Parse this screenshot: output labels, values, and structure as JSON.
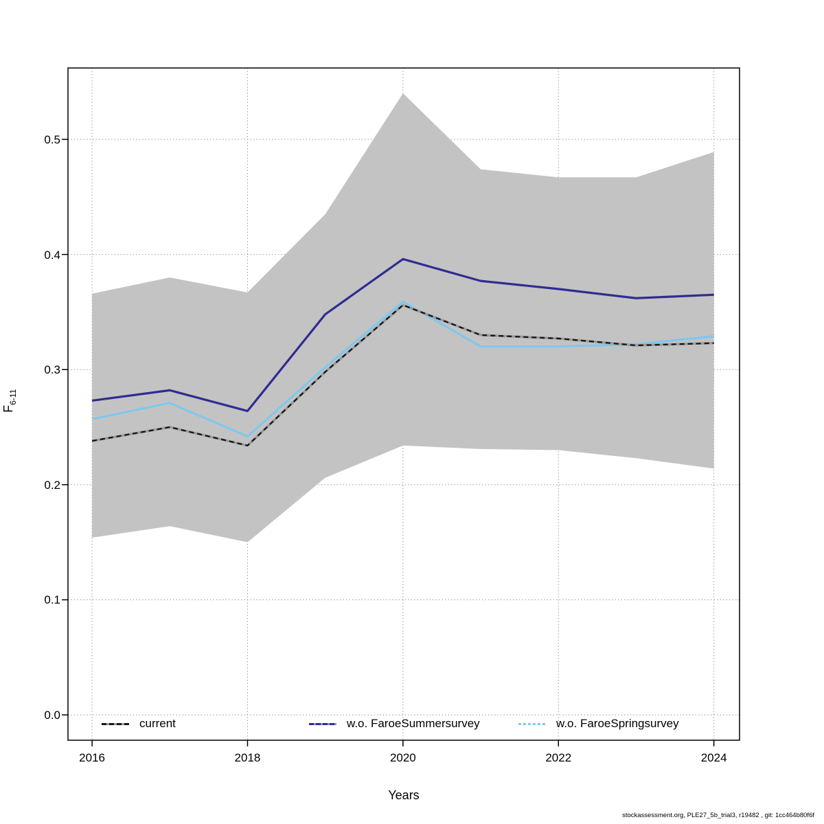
{
  "footer": {
    "text": "stockassessment.org, PLE27_5b_trial3, r19482 , git: 1cc464b80f6f"
  },
  "chart_data": {
    "type": "line",
    "title": "",
    "xlabel": "Years",
    "ylabel": "F",
    "ylabel_subscript": "6-11",
    "x": [
      2016,
      2017,
      2018,
      2019,
      2020,
      2021,
      2022,
      2023,
      2024
    ],
    "series": [
      {
        "name": "current",
        "color": "#161616",
        "underlay_color": "#9a9a9a",
        "style": "dashed-over-gray",
        "values": [
          0.238,
          0.25,
          0.234,
          0.298,
          0.356,
          0.33,
          0.327,
          0.321,
          0.323
        ]
      },
      {
        "name": "w.o. FaroeSummersurvey",
        "color": "#2f2c93",
        "style": "solid",
        "values": [
          0.273,
          0.282,
          0.264,
          0.348,
          0.396,
          0.377,
          0.37,
          0.362,
          0.365
        ]
      },
      {
        "name": "w.o. FaroeSpringsurvey",
        "color": "#7cc8ef",
        "style": "solid",
        "values": [
          0.257,
          0.271,
          0.242,
          0.302,
          0.359,
          0.32,
          0.32,
          0.322,
          0.329
        ]
      }
    ],
    "band": {
      "name": "confidence-band",
      "series": "current",
      "color": "#c3c3c3",
      "lower": [
        0.154,
        0.164,
        0.15,
        0.206,
        0.234,
        0.231,
        0.23,
        0.223,
        0.214
      ],
      "upper": [
        0.366,
        0.38,
        0.367,
        0.435,
        0.54,
        0.474,
        0.467,
        0.467,
        0.489
      ]
    },
    "x_ticks": {
      "values": [
        2016,
        2018,
        2020,
        2022,
        2024
      ],
      "labels": [
        "2016",
        "2018",
        "2020",
        "2022",
        "2024"
      ]
    },
    "y_ticks": {
      "values": [
        0.0,
        0.1,
        0.2,
        0.3,
        0.4,
        0.5
      ],
      "labels": [
        "0.0",
        "0.1",
        "0.2",
        "0.3",
        "0.4",
        "0.5"
      ]
    },
    "x_range": [
      2015.69,
      2024.33
    ],
    "y_range": [
      -0.022,
      0.562
    ],
    "grid": true,
    "grid_color": "#999999",
    "legend_position": "bottom-inside"
  }
}
